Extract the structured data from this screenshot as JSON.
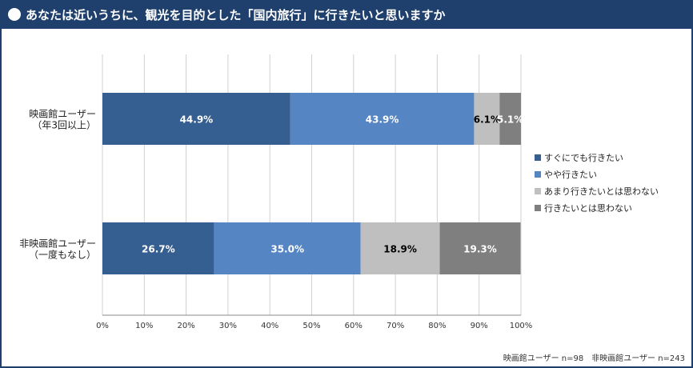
{
  "header": {
    "title": "あなたは近いうちに、観光を目的とした「国内旅行」に行きたいと思いますか"
  },
  "footnote": "映画館ユーザー n=98　非映画館ユーザー n=243",
  "colors": {
    "frame": "#1f3f6d",
    "series": [
      "#365f91",
      "#5585c3",
      "#bfbfbf",
      "#7f7f7f"
    ]
  },
  "chart_data": {
    "type": "bar",
    "orientation": "horizontal",
    "stacked": true,
    "categories": [
      [
        "映画館ユーザー",
        "（年3回以上）"
      ],
      [
        "非映画館ユーザー",
        "（一度もなし）"
      ]
    ],
    "series": [
      {
        "name": "すぐにでも行きたい",
        "values": [
          44.9,
          26.7
        ],
        "labels": [
          "44.9%",
          "26.7%"
        ]
      },
      {
        "name": "やや行きたい",
        "values": [
          43.9,
          35.0
        ],
        "labels": [
          "43.9%",
          "35.0%"
        ]
      },
      {
        "name": "あまり行きたいとは思わない",
        "values": [
          6.1,
          18.9
        ],
        "labels": [
          "6.1%",
          "18.9%"
        ]
      },
      {
        "name": "行きたいとは思わない",
        "values": [
          5.1,
          19.3
        ],
        "labels": [
          "5.1%",
          "19.3%"
        ]
      }
    ],
    "xlim": [
      0,
      100
    ],
    "xticks": [
      "0%",
      "10%",
      "20%",
      "30%",
      "40%",
      "50%",
      "60%",
      "70%",
      "80%",
      "90%",
      "100%"
    ],
    "grid": true,
    "legend": "right"
  }
}
